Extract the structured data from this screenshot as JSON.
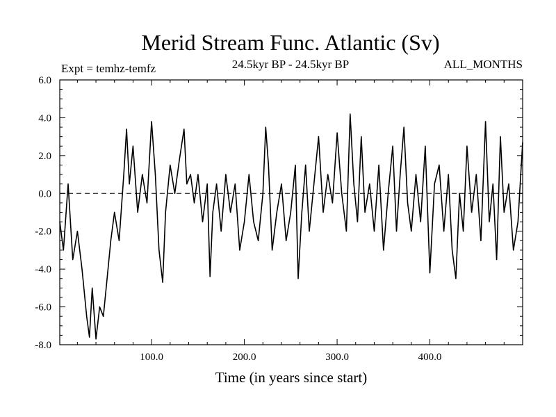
{
  "chart_data": {
    "type": "line",
    "title": "Merid Stream Func. Atlantic (Sv)",
    "subtitle": "24.5kyr BP - 24.5kyr BP",
    "left_label": "Expt = temhz-temfz",
    "right_label": "ALL_MONTHS",
    "xlabel": "Time (in years since start)",
    "ylabel": "",
    "xlim": [
      1,
      500
    ],
    "ylim": [
      -8,
      6
    ],
    "x_ticks": [
      {
        "value": 100,
        "label": "100.0"
      },
      {
        "value": 200,
        "label": "200.0"
      },
      {
        "value": 300,
        "label": "300.0"
      },
      {
        "value": 400,
        "label": "400.0"
      }
    ],
    "y_ticks": [
      {
        "value": 6,
        "label": "6.0"
      },
      {
        "value": 4,
        "label": "4.0"
      },
      {
        "value": 2,
        "label": "2.0"
      },
      {
        "value": 0,
        "label": "0.0"
      },
      {
        "value": -2,
        "label": "-2.0"
      },
      {
        "value": -4,
        "label": "-4.0"
      },
      {
        "value": -6,
        "label": "-6.0"
      },
      {
        "value": -8,
        "label": "-8.0"
      }
    ],
    "reference_line": 0,
    "series": [
      {
        "name": "Merid Stream Func. Atlantic",
        "x": [
          1,
          5,
          10,
          15,
          20,
          25,
          30,
          33,
          36,
          40,
          44,
          48,
          52,
          56,
          60,
          65,
          70,
          73,
          76,
          80,
          85,
          90,
          95,
          100,
          104,
          108,
          112,
          115,
          120,
          125,
          130,
          135,
          138,
          142,
          146,
          150,
          155,
          160,
          163,
          166,
          170,
          175,
          180,
          185,
          190,
          195,
          200,
          205,
          210,
          215,
          220,
          223,
          226,
          230,
          235,
          240,
          245,
          250,
          255,
          258,
          262,
          266,
          270,
          275,
          280,
          285,
          290,
          295,
          300,
          305,
          310,
          314,
          318,
          322,
          326,
          330,
          335,
          340,
          345,
          350,
          355,
          360,
          364,
          368,
          372,
          376,
          380,
          385,
          390,
          395,
          400,
          405,
          410,
          415,
          420,
          424,
          428,
          432,
          436,
          440,
          445,
          450,
          455,
          460,
          464,
          468,
          472,
          476,
          480,
          485,
          490,
          495,
          500
        ],
        "values": [
          -1.5,
          -3.0,
          0.5,
          -3.5,
          -2.0,
          -4.0,
          -6.5,
          -7.6,
          -5.0,
          -7.7,
          -6.0,
          -6.5,
          -4.5,
          -2.5,
          -1.0,
          -2.5,
          1.0,
          3.4,
          0.5,
          2.5,
          -1.0,
          1.0,
          -0.5,
          3.8,
          1.0,
          -3.0,
          -4.7,
          -1.0,
          1.5,
          0.0,
          1.8,
          3.4,
          0.5,
          1.0,
          -0.5,
          1.0,
          -1.5,
          0.5,
          -4.4,
          -1.0,
          0.5,
          -2.0,
          1.0,
          -1.0,
          0.5,
          -3.0,
          -1.5,
          1.0,
          -1.5,
          -2.5,
          0.0,
          3.5,
          1.5,
          -3.0,
          -1.0,
          0.5,
          -2.5,
          -1.0,
          1.5,
          -4.5,
          -1.0,
          1.5,
          -2.0,
          0.5,
          3.0,
          -1.0,
          1.0,
          -0.5,
          3.2,
          0.0,
          -2.0,
          4.2,
          0.5,
          -1.5,
          3.0,
          -1.0,
          0.5,
          -2.0,
          1.5,
          -3.0,
          0.0,
          2.5,
          -2.0,
          1.0,
          3.5,
          -0.5,
          -2.0,
          1.0,
          -1.5,
          2.5,
          -4.2,
          0.5,
          1.5,
          -2.0,
          1.0,
          -3.0,
          -4.5,
          0.0,
          -2.0,
          2.5,
          -1.0,
          1.0,
          -2.5,
          3.8,
          -1.5,
          0.5,
          -3.5,
          3.0,
          -1.0,
          0.5,
          -3.0,
          -1.5,
          2.7
        ]
      }
    ]
  }
}
